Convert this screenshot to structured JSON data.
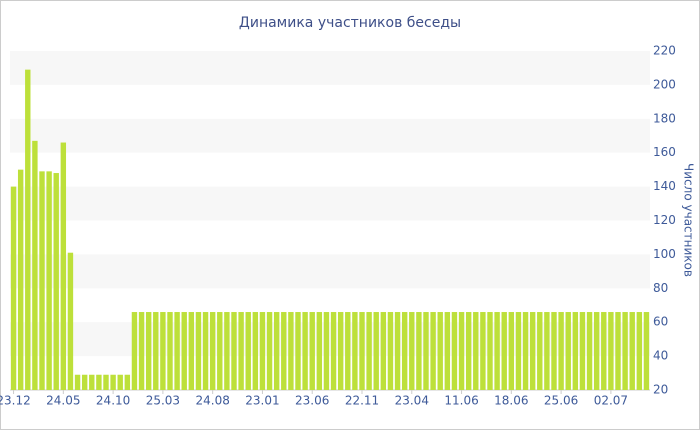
{
  "chart_data": {
    "type": "bar",
    "title": "Динамика участников беседы",
    "y_label": "Число участников",
    "color": "#bde03a",
    "grid": true,
    "ylim": [
      20,
      220
    ],
    "yticks": [
      20,
      40,
      60,
      80,
      100,
      120,
      140,
      160,
      180,
      200,
      220
    ],
    "categories": [
      "23.12",
      null,
      null,
      null,
      null,
      null,
      null,
      "24.05",
      null,
      null,
      null,
      null,
      null,
      null,
      "24.10",
      null,
      null,
      null,
      null,
      null,
      null,
      "25.03",
      null,
      null,
      null,
      null,
      null,
      null,
      "24.08",
      null,
      null,
      null,
      null,
      null,
      null,
      "23.01",
      null,
      null,
      null,
      null,
      null,
      null,
      "23.06",
      null,
      null,
      null,
      null,
      null,
      null,
      "22.11",
      null,
      null,
      null,
      null,
      null,
      null,
      "23.04",
      null,
      null,
      null,
      null,
      null,
      null,
      "11.06",
      null,
      null,
      null,
      null,
      null,
      null,
      "18.06",
      null,
      null,
      null,
      null,
      null,
      null,
      "25.06",
      null,
      null,
      null,
      null,
      null,
      null,
      "02.07",
      null,
      null,
      null,
      null,
      null
    ],
    "values": [
      140,
      150,
      209,
      167,
      149,
      149,
      148,
      166,
      101,
      29,
      29,
      29,
      29,
      29,
      29,
      29,
      29,
      66,
      66,
      66,
      66,
      66,
      66,
      66,
      66,
      66,
      66,
      66,
      66,
      66,
      66,
      66,
      66,
      66,
      66,
      66,
      66,
      66,
      66,
      66,
      66,
      66,
      66,
      66,
      66,
      66,
      66,
      66,
      66,
      66,
      66,
      66,
      66,
      66,
      66,
      66,
      66,
      66,
      66,
      66,
      66,
      66,
      66,
      66,
      66,
      66,
      66,
      66,
      66,
      66,
      66,
      66,
      66,
      66,
      66,
      66,
      66,
      66,
      66,
      66,
      66,
      66,
      66,
      66,
      66,
      66,
      66,
      66,
      66,
      66
    ]
  }
}
